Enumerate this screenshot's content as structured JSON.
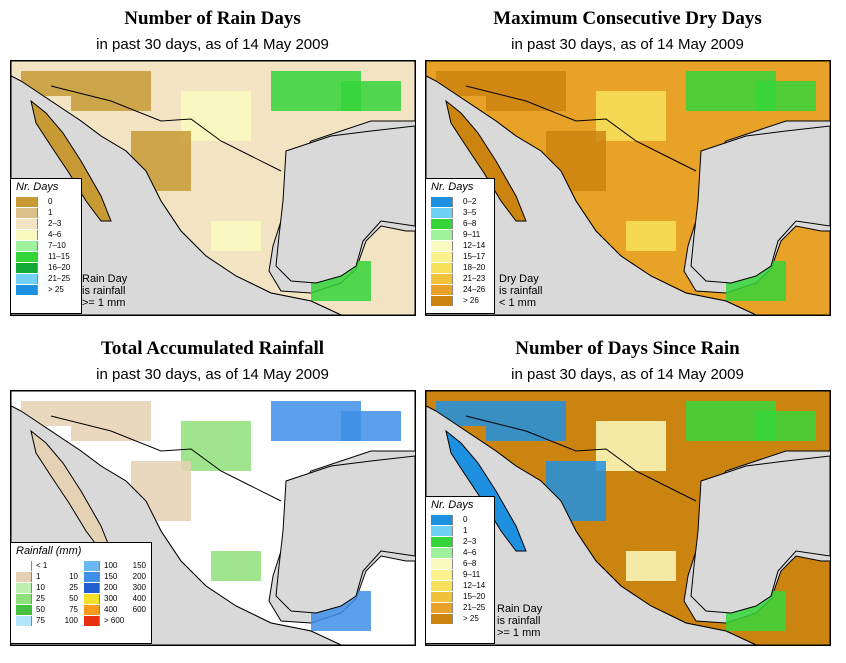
{
  "subtitle_text": "in past 30 days, as of  14 May 2009",
  "panels": {
    "rain_days": {
      "title": "Number of Rain Days",
      "subtitle": "in past 30 days, as of  14 May 2009",
      "legend_title": "Nr. Days",
      "legend": [
        {
          "label": "0",
          "color": "#c79a35"
        },
        {
          "label": "1",
          "color": "#dcc08a"
        },
        {
          "label": "2–3",
          "color": "#f2e3c3"
        },
        {
          "label": "4–6",
          "color": "#fafac0"
        },
        {
          "label": "7–10",
          "color": "#9ff29b"
        },
        {
          "label": "11–15",
          "color": "#35d53a"
        },
        {
          "label": "16–20",
          "color": "#11a935"
        },
        {
          "label": "21–25",
          "color": "#6fd1f5"
        },
        {
          "label": "> 25",
          "color": "#1e90e0"
        }
      ],
      "note": [
        "Rain Day",
        "is rainfall",
        ">= 1 mm"
      ]
    },
    "dry_days": {
      "title": "Maximum Consecutive Dry Days",
      "subtitle": "in past 30 days, as of  14 May 2009",
      "legend_title": "Nr. Days",
      "legend": [
        {
          "label": "0–2",
          "color": "#1e90e0"
        },
        {
          "label": "3–5",
          "color": "#6fd1f5"
        },
        {
          "label": "6–8",
          "color": "#35d53a"
        },
        {
          "label": "9–11",
          "color": "#9ff29b"
        },
        {
          "label": "12–14",
          "color": "#fafac0"
        },
        {
          "label": "15–17",
          "color": "#fbf28d"
        },
        {
          "label": "18–20",
          "color": "#f6e05a"
        },
        {
          "label": "21–23",
          "color": "#f2c13a"
        },
        {
          "label": "24–26",
          "color": "#e8a227"
        },
        {
          "label": "> 26",
          "color": "#cc8410"
        }
      ],
      "note": [
        "Dry Day",
        "is rainfall",
        "< 1 mm"
      ]
    },
    "total_rainfall": {
      "title": "Total Accumulated Rainfall",
      "subtitle": "in past 30 days, as of  14 May 2009",
      "legend_title": "Rainfall (mm)",
      "legend_left": [
        {
          "a": "< 1",
          "b": "",
          "color": "#ffffff"
        },
        {
          "a": "1",
          "b": "10",
          "color": "#e5d1b3"
        },
        {
          "a": "10",
          "b": "25",
          "color": "#c0f0b0"
        },
        {
          "a": "25",
          "b": "50",
          "color": "#8fe07a"
        },
        {
          "a": "50",
          "b": "75",
          "color": "#45c040"
        },
        {
          "a": "75",
          "b": "100",
          "color": "#b3e6fb"
        }
      ],
      "legend_right": [
        {
          "a": "100",
          "b": "150",
          "color": "#6bb7f0"
        },
        {
          "a": "150",
          "b": "200",
          "color": "#3f8ee8"
        },
        {
          "a": "200",
          "b": "300",
          "color": "#1f5fd0"
        },
        {
          "a": "300",
          "b": "400",
          "color": "#f8e028"
        },
        {
          "a": "400",
          "b": "600",
          "color": "#f89a1e"
        },
        {
          "a": "> 600",
          "b": "",
          "color": "#e83010"
        }
      ]
    },
    "days_since_rain": {
      "title": "Number of Days Since Rain",
      "subtitle": "in past 30 days, as of  14 May 2009",
      "legend_title": "Nr. Days",
      "legend": [
        {
          "label": "0",
          "color": "#1e90e0"
        },
        {
          "label": "1",
          "color": "#6fd1f5"
        },
        {
          "label": "2–3",
          "color": "#35d53a"
        },
        {
          "label": "4–6",
          "color": "#9ff29b"
        },
        {
          "label": "6–8",
          "color": "#fafac0"
        },
        {
          "label": "9–11",
          "color": "#fbf28d"
        },
        {
          "label": "12–14",
          "color": "#f6e05a"
        },
        {
          "label": "15–20",
          "color": "#f2c13a"
        },
        {
          "label": "21–25",
          "color": "#e8a227"
        },
        {
          "label": "> 25",
          "color": "#cc8410"
        }
      ],
      "note": [
        "Rain Day",
        "is rainfall",
        ">= 1 mm"
      ]
    }
  },
  "colors": {
    "ocean": "#d9d9d9",
    "border": "#000000"
  }
}
